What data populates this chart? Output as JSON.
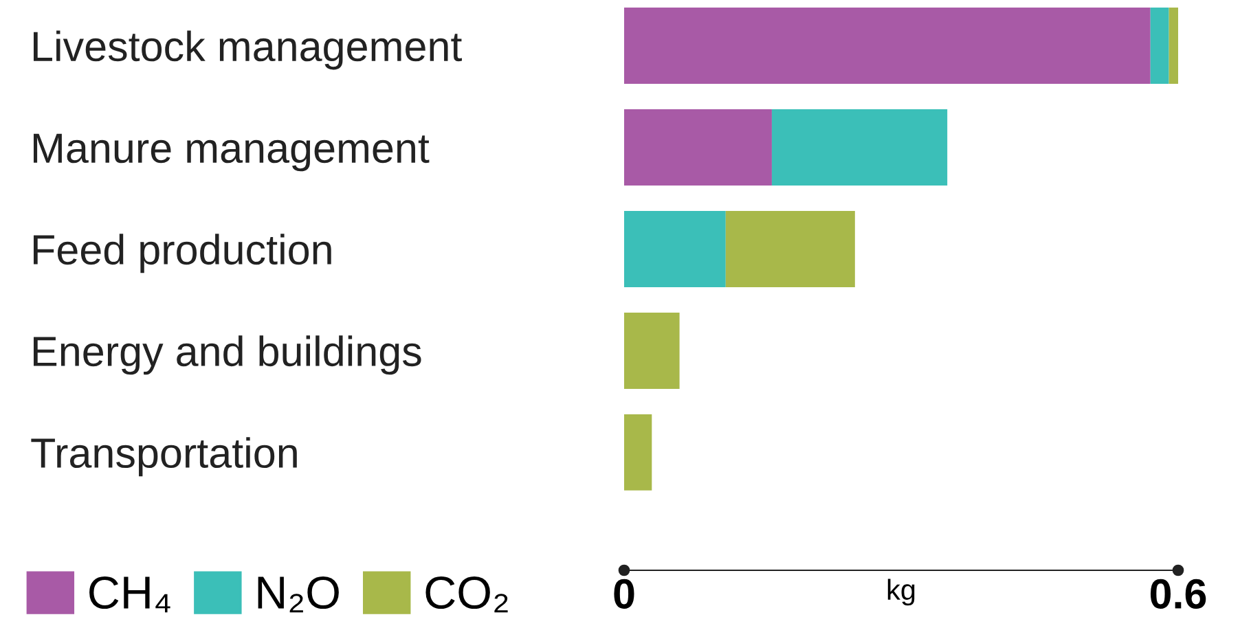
{
  "chart_data": {
    "type": "bar",
    "orientation": "horizontal",
    "stacked": true,
    "categories": [
      "Livestock management",
      "Manure management",
      "Feed production",
      "Energy and buildings",
      "Transportation"
    ],
    "series": [
      {
        "name": "CH₄",
        "color": "#a85aa6",
        "values": [
          0.57,
          0.16,
          null,
          null,
          null
        ]
      },
      {
        "name": "N₂O",
        "color": "#3bbfb8",
        "values": [
          0.02,
          0.19,
          0.11,
          null,
          null
        ]
      },
      {
        "name": "CO₂",
        "color": "#a8b84a",
        "values": [
          0.01,
          null,
          0.14,
          0.06,
          0.03
        ]
      }
    ],
    "xlabel": "kg",
    "xlim": [
      0,
      0.6
    ],
    "xticks": [
      0,
      0.6
    ],
    "grid": false,
    "legend": "bottom left"
  }
}
